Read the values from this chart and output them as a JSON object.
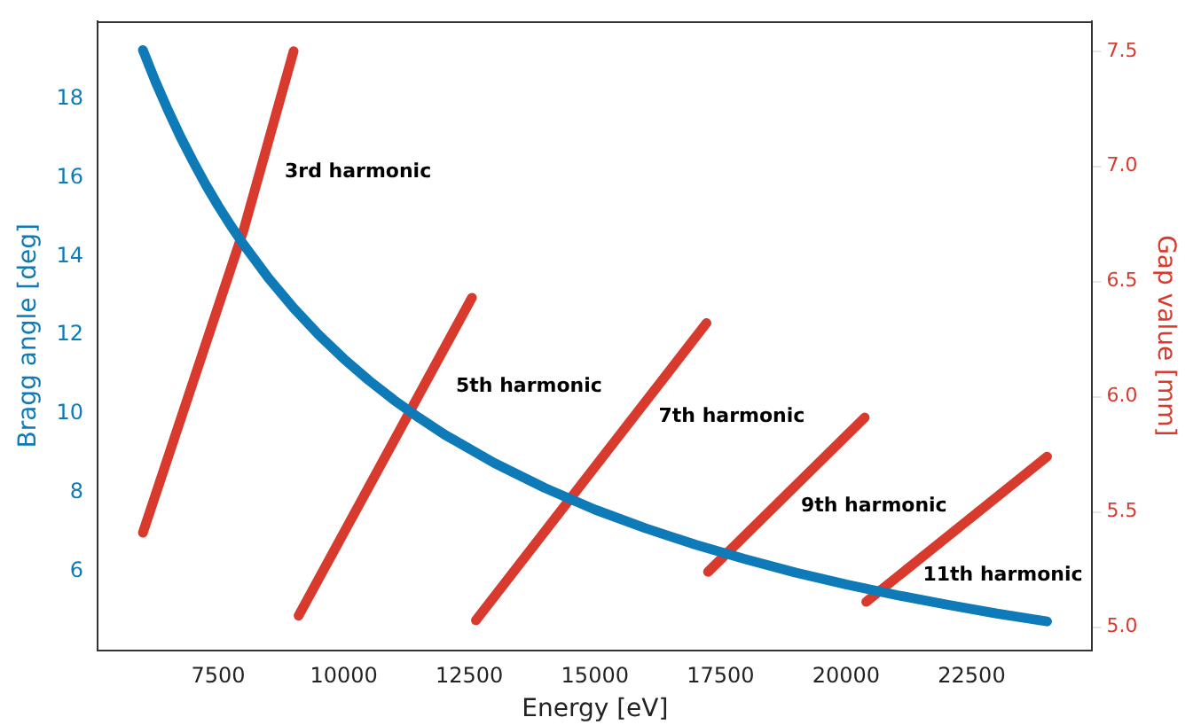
{
  "chart_data": {
    "type": "line",
    "xlabel": "Energy [eV]",
    "ylabel": "Bragg angle [deg]",
    "y2label": "Gap value [mm]",
    "xlim": [
      5100,
      24900
    ],
    "xticks": [
      7500,
      10000,
      12500,
      15000,
      17500,
      20000,
      22500
    ],
    "ylim": [
      4.0,
      19.97
    ],
    "yticks": [
      6,
      8,
      10,
      12,
      14,
      16,
      18
    ],
    "y2lim": [
      4.9,
      7.63
    ],
    "y2ticks": [
      {
        "value": 5,
        "label": "5.0"
      },
      5.5,
      {
        "value": 6,
        "label": "6.0"
      },
      6.5,
      {
        "value": 7,
        "label": "7.0"
      },
      7.5
    ],
    "grid": false,
    "legend": false,
    "series": [
      {
        "color": "#0e7bb8",
        "x": [
          6000,
          6250,
          6500,
          6750,
          7000,
          7250,
          7500,
          7750,
          8000,
          8500,
          9000,
          9500,
          10000,
          10500,
          11000,
          11500,
          12000,
          13000,
          14000,
          15000,
          16000,
          17000,
          18000,
          19000,
          20000,
          21000,
          22000,
          23000,
          24000
        ],
        "values": [
          19.24,
          18.44,
          17.71,
          17.03,
          16.41,
          15.82,
          15.28,
          14.78,
          14.31,
          13.45,
          12.69,
          12.01,
          11.4,
          10.85,
          10.35,
          9.9,
          9.48,
          8.75,
          8.12,
          7.57,
          7.1,
          6.68,
          6.31,
          5.97,
          5.67,
          5.4,
          5.16,
          4.93,
          4.73
        ]
      },
      {
        "name": "3rd harmonic",
        "color": "#d93a2e",
        "axis": "y2",
        "x": [
          6000,
          8000,
          9000
        ],
        "values": [
          5.41,
          6.72,
          7.5
        ]
      },
      {
        "name": "5th harmonic",
        "color": "#d93a2e",
        "axis": "y2",
        "x": [
          9100,
          12550
        ],
        "values": [
          5.05,
          6.43
        ]
      },
      {
        "name": "7th harmonic",
        "color": "#d93a2e",
        "axis": "y2",
        "x": [
          12630,
          17220
        ],
        "values": [
          5.03,
          6.32
        ]
      },
      {
        "name": "9th harmonic",
        "color": "#d93a2e",
        "axis": "y2",
        "x": [
          17250,
          20370
        ],
        "values": [
          5.24,
          5.91
        ]
      },
      {
        "name": "11th harmonic",
        "color": "#d93a2e",
        "axis": "y2",
        "x": [
          20400,
          24000
        ],
        "values": [
          5.11,
          5.74
        ]
      }
    ]
  }
}
